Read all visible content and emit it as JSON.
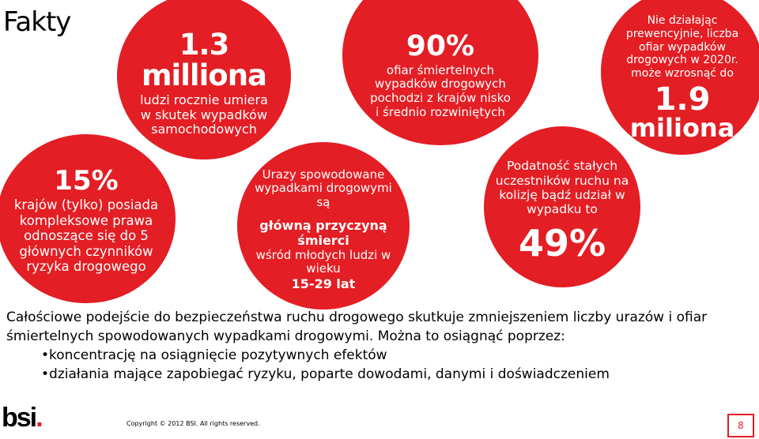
{
  "slide": {
    "title": "Fakty",
    "circle_deaths": {
      "big": "1.3",
      "big2": "milliona",
      "text": "ludzi rocznie umiera w skutek wypadków samochodowych"
    },
    "circle_countries": {
      "big": "90%",
      "text": "ofiar śmiertelnych wypadków drogowych pochodzi z krajów nisko i średnio rozwiniętych"
    },
    "circle_laws": {
      "big": "15%",
      "text": "krajów (tylko) posiada kompleksowe prawa odnoszące się do 5 głównych czynników ryzyka drogowego"
    },
    "circle_youth": {
      "text1": "Urazy spowodowane wypadkami drogowymi są",
      "bold": "główną przyczyną śmierci",
      "text2": "wśród młodych ludzi w wieku",
      "bold2": "15-29 lat"
    },
    "circle_collision": {
      "text": "Podatność stałych uczestników ruchu na kolizję bądź udział w wypadku to",
      "big": "49%"
    },
    "circle_forecast": {
      "text": "Nie działając prewencyjnie, liczba ofiar wypadków drogowych w 2020r. może wzrosnąć do",
      "big": "1.9",
      "big2": "miliona"
    },
    "body": {
      "paragraph": "Całościowe podejście do bezpieczeństwa ruchu drogowego skutkuje zmniejszeniem liczby urazów i ofiar śmiertelnych spowodowanych wypadkami drogowymi. Można to osiągnąć poprzez:",
      "bullets": [
        "•koncentrację na osiągnięcie pozytywnych efektów",
        "•działania mające zapobiegać ryzyku, poparte dowodami, danymi i doświadczeniem"
      ]
    },
    "footer": {
      "logo": "bsi",
      "logo_dot": ".",
      "copyright": "Copyright © 2012 BSI. All rights reserved.",
      "page_number": "8"
    }
  }
}
